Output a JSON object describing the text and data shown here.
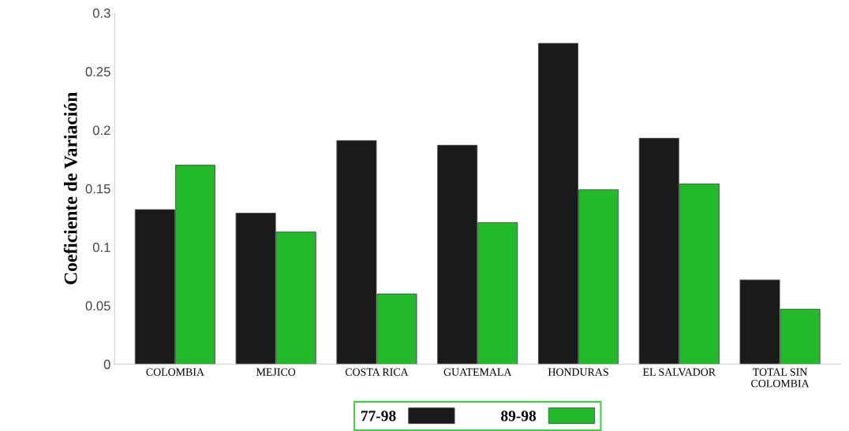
{
  "chart_data": {
    "type": "bar",
    "ylabel": "Coeficiente de Variación",
    "categories": [
      "COLOMBIA",
      "MEJICO",
      "COSTA RICA",
      "GUATEMALA",
      "HONDURAS",
      "EL SALVADOR",
      "TOTAL SIN\nCOLOMBIA"
    ],
    "series": [
      {
        "name": "77-98",
        "color": "#1a1a1a",
        "values": [
          0.132,
          0.129,
          0.191,
          0.187,
          0.274,
          0.193,
          0.072
        ]
      },
      {
        "name": "89-98",
        "color": "#22b92a",
        "values": [
          0.17,
          0.113,
          0.06,
          0.121,
          0.149,
          0.154,
          0.047
        ]
      }
    ],
    "ylim": [
      0,
      0.3
    ],
    "yticks": [
      {
        "value": 0,
        "label": "0"
      },
      0.05,
      0.1,
      0.15,
      0.2,
      0.25,
      0.3
    ],
    "grid": false,
    "legend": "bottom"
  }
}
